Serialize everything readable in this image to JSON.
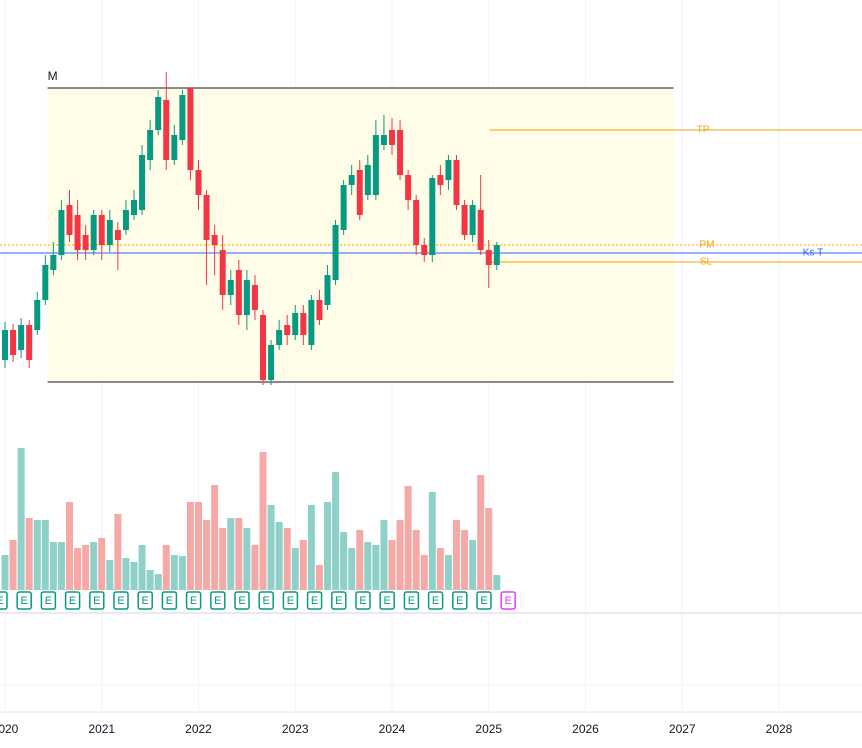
{
  "chart_data": {
    "type": "candlestick",
    "up_color": "#089981",
    "down_color": "#f23645",
    "ylim": [
      0,
      500
    ],
    "xlim": [
      2019.95,
      2028.86
    ],
    "xticks": [
      2020,
      2021,
      2022,
      2023,
      2024,
      2025,
      2026,
      2027,
      2028
    ],
    "ohlc": [
      [
        140,
        178,
        132,
        170
      ],
      [
        170,
        176,
        138,
        145
      ],
      [
        150,
        182,
        142,
        175
      ],
      [
        175,
        180,
        132,
        140
      ],
      [
        170,
        208,
        165,
        200
      ],
      [
        200,
        245,
        195,
        235
      ],
      [
        230,
        258,
        225,
        245
      ],
      [
        245,
        300,
        240,
        290
      ],
      [
        295,
        310,
        258,
        265
      ],
      [
        285,
        300,
        240,
        250
      ],
      [
        265,
        275,
        240,
        250
      ],
      [
        250,
        290,
        245,
        285
      ],
      [
        285,
        290,
        240,
        255
      ],
      [
        255,
        290,
        248,
        280
      ],
      [
        270,
        278,
        230,
        260
      ],
      [
        270,
        300,
        265,
        290
      ],
      [
        285,
        310,
        280,
        300
      ],
      [
        290,
        355,
        285,
        345
      ],
      [
        340,
        380,
        330,
        370
      ],
      [
        370,
        410,
        365,
        403
      ],
      [
        400,
        428,
        330,
        340
      ],
      [
        340,
        375,
        335,
        365
      ],
      [
        360,
        410,
        355,
        405
      ],
      [
        412,
        412,
        320,
        330
      ],
      [
        330,
        340,
        290,
        305
      ],
      [
        305,
        310,
        215,
        260
      ],
      [
        265,
        275,
        225,
        255
      ],
      [
        250,
        265,
        190,
        205
      ],
      [
        205,
        230,
        195,
        220
      ],
      [
        230,
        240,
        175,
        185
      ],
      [
        185,
        230,
        170,
        220
      ],
      [
        215,
        225,
        180,
        190
      ],
      [
        185,
        190,
        115,
        120
      ],
      [
        120,
        160,
        115,
        155
      ],
      [
        155,
        180,
        150,
        170
      ],
      [
        175,
        185,
        155,
        165
      ],
      [
        165,
        195,
        160,
        187
      ],
      [
        187,
        195,
        155,
        165
      ],
      [
        155,
        205,
        150,
        200
      ],
      [
        200,
        210,
        175,
        180
      ],
      [
        195,
        235,
        190,
        225
      ],
      [
        220,
        280,
        215,
        275
      ],
      [
        270,
        320,
        265,
        315
      ],
      [
        315,
        335,
        305,
        325
      ],
      [
        330,
        340,
        280,
        285
      ],
      [
        305,
        345,
        300,
        335
      ],
      [
        305,
        380,
        300,
        365
      ],
      [
        355,
        385,
        350,
        365
      ],
      [
        370,
        382,
        345,
        355
      ],
      [
        370,
        380,
        320,
        325
      ],
      [
        325,
        330,
        290,
        300
      ],
      [
        300,
        305,
        245,
        255
      ],
      [
        255,
        262,
        238,
        245
      ],
      [
        245,
        325,
        238,
        322
      ],
      [
        325,
        335,
        305,
        315
      ],
      [
        320,
        345,
        310,
        340
      ],
      [
        340,
        345,
        290,
        295
      ],
      [
        295,
        300,
        260,
        265
      ],
      [
        265,
        300,
        258,
        295
      ],
      [
        290,
        325,
        245,
        250
      ],
      [
        250,
        260,
        212,
        235
      ],
      [
        235,
        258,
        230,
        255
      ]
    ],
    "volume": {
      "ylim": [
        0,
        150
      ],
      "up_color": "#8fd1c8",
      "down_color": "#f5a9a7",
      "values": [
        35,
        50,
        142,
        72,
        70,
        70,
        48,
        48,
        88,
        42,
        45,
        48,
        52,
        30,
        76,
        32,
        28,
        45,
        20,
        16,
        45,
        35,
        34,
        88,
        88,
        70,
        105,
        62,
        72,
        72,
        62,
        45,
        138,
        85,
        68,
        62,
        42,
        50,
        85,
        25,
        88,
        118,
        58,
        42,
        60,
        48,
        45,
        70,
        50,
        70,
        104,
        60,
        35,
        98,
        42,
        35,
        70,
        60,
        50,
        115,
        82,
        15
      ]
    },
    "range_box": {
      "label": "M",
      "top": 412,
      "bottom": 118,
      "start": 2020.44,
      "end": 2026.91
    },
    "levels": [
      {
        "label": "TP",
        "value": 370,
        "color": "#f0a30a",
        "from": 2025.01
      },
      {
        "label": "PM",
        "value": 255,
        "color": "#f0a30a",
        "from": 2019.95
      },
      {
        "label": "Ks T",
        "value": 247,
        "color": "#2962ff",
        "from": 2019.95
      },
      {
        "label": "SL",
        "value": 238,
        "color": "#f0a30a",
        "from": 2025.01
      }
    ],
    "earnings": {
      "labels": [
        "E",
        "E",
        "E",
        "E",
        "E",
        "E",
        "E",
        "E",
        "E",
        "E",
        "E",
        "E",
        "E",
        "E",
        "E",
        "E",
        "E",
        "E",
        "E",
        "E",
        "E"
      ],
      "upcoming": "E"
    }
  }
}
